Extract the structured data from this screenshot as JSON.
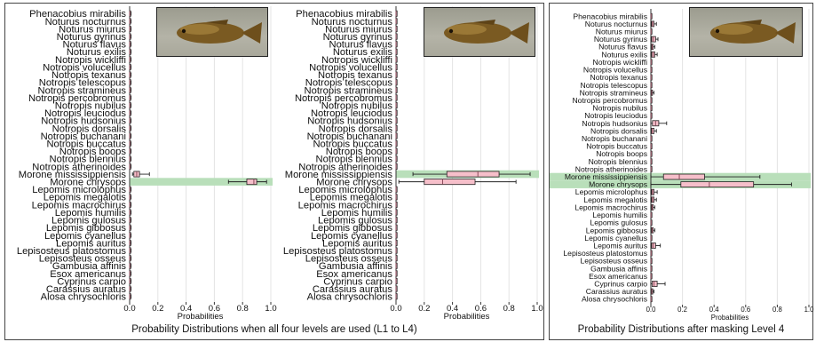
{
  "species": [
    "Phenacobius mirabilis",
    "Noturus nocturnus",
    "Noturus miurus",
    "Noturus gyrinus",
    "Noturus flavus",
    "Noturus exilis",
    "Notropis wickliffi",
    "Notropis volucellus",
    "Notropis texanus",
    "Notropis telescopus",
    "Notropis stramineus",
    "Notropis percobromus",
    "Notropis nubilus",
    "Notropis leuciodus",
    "Notropis hudsonius",
    "Notropis dorsalis",
    "Notropis buchanani",
    "Notropis buccatus",
    "Notropis boops",
    "Notropis blennius",
    "Notropis atherinoides",
    "Morone mississippiensis",
    "Morone chrysops",
    "Lepomis microlophus",
    "Lepomis megalotis",
    "Lepomis macrochirus",
    "Lepomis humilis",
    "Lepomis gulosus",
    "Lepomis gibbosus",
    "Lepomis cyanellus",
    "Lepomis auritus",
    "Lepisosteus platostomus",
    "Lepisosteus osseus",
    "Gambusia affinis",
    "Esox americanus",
    "Cyprinus carpio",
    "Carassius auratus",
    "Alosa chrysochloris"
  ],
  "colors": {
    "box_fill": "#f6bfca",
    "box_edge": "#8a4b5a",
    "highlight": "#b9dfba",
    "grid": "#e4e4e4"
  },
  "captions": {
    "left": "Probability Distributions when all four levels are used (L1 to L4)",
    "right": "Probability Distributions after masking Level 4"
  },
  "fish_image": {
    "icon": "fish-photo-icon",
    "description_visible": false
  },
  "chart_data": [
    {
      "type": "boxplot",
      "xlabel": "Probabilities",
      "xlim": [
        0.0,
        1.0
      ],
      "xticks": [
        "0.0",
        "0.2",
        "0.4",
        "0.6",
        "0.8",
        "1.0"
      ],
      "highlight_category": "Morone chrysops",
      "grid": true,
      "boxes": {
        "Morone mississippiensis": {
          "whislo": 0.02,
          "q1": 0.03,
          "med": 0.05,
          "q3": 0.07,
          "whishi": 0.14
        },
        "Morone chrysops": {
          "whislo": 0.7,
          "q1": 0.83,
          "med": 0.88,
          "q3": 0.9,
          "whishi": 0.97
        }
      },
      "default_box": {
        "whislo": 0.0,
        "q1": 0.0,
        "med": 0.0,
        "q3": 0.005,
        "whishi": 0.01
      }
    },
    {
      "type": "boxplot",
      "xlabel": "Probabilities",
      "xlim": [
        0.0,
        1.0
      ],
      "xticks": [
        "0.0",
        "0.2",
        "0.4",
        "0.6",
        "0.8",
        "1.0"
      ],
      "highlight_category": "Morone mississippiensis",
      "grid": true,
      "boxes": {
        "Morone mississippiensis": {
          "whislo": 0.12,
          "q1": 0.36,
          "med": 0.58,
          "q3": 0.73,
          "whishi": 0.95
        },
        "Morone chrysops": {
          "whislo": 0.02,
          "q1": 0.2,
          "med": 0.33,
          "q3": 0.56,
          "whishi": 0.85
        }
      },
      "default_box": {
        "whislo": 0.0,
        "q1": 0.0,
        "med": 0.0,
        "q3": 0.002,
        "whishi": 0.004
      }
    },
    {
      "type": "boxplot",
      "xlabel": "Probabilities",
      "xlim": [
        0.0,
        1.0
      ],
      "xticks": [
        "0.0",
        "0.2",
        "0.4",
        "0.6",
        "0.8",
        "1.0"
      ],
      "highlight_category": "Morone mississippiensis, Morone chrysops",
      "grid": true,
      "boxes": {
        "Noturus nocturnus": {
          "whislo": 0.0,
          "q1": 0.005,
          "med": 0.01,
          "q3": 0.02,
          "whishi": 0.035
        },
        "Noturus gyrinus": {
          "whislo": 0.0,
          "q1": 0.005,
          "med": 0.015,
          "q3": 0.03,
          "whishi": 0.045
        },
        "Noturus flavus": {
          "whislo": 0.0,
          "q1": 0.003,
          "med": 0.008,
          "q3": 0.015,
          "whishi": 0.025
        },
        "Noturus exilis": {
          "whislo": 0.0,
          "q1": 0.005,
          "med": 0.015,
          "q3": 0.025,
          "whishi": 0.04
        },
        "Notropis stramineus": {
          "whislo": 0.0,
          "q1": 0.002,
          "med": 0.005,
          "q3": 0.01,
          "whishi": 0.02
        },
        "Notropis hudsonius": {
          "whislo": 0.0,
          "q1": 0.01,
          "med": 0.03,
          "q3": 0.05,
          "whishi": 0.1
        },
        "Notropis dorsalis": {
          "whislo": 0.0,
          "q1": 0.003,
          "med": 0.008,
          "q3": 0.02,
          "whishi": 0.035
        },
        "Morone mississippiensis": {
          "whislo": 0.0,
          "q1": 0.08,
          "med": 0.18,
          "q3": 0.34,
          "whishi": 0.69
        },
        "Morone chrysops": {
          "whislo": 0.0,
          "q1": 0.19,
          "med": 0.37,
          "q3": 0.65,
          "whishi": 0.89
        },
        "Lepomis microlophus": {
          "whislo": 0.0,
          "q1": 0.005,
          "med": 0.01,
          "q3": 0.02,
          "whishi": 0.04
        },
        "Lepomis megalotis": {
          "whislo": 0.0,
          "q1": 0.005,
          "med": 0.01,
          "q3": 0.02,
          "whishi": 0.035
        },
        "Lepomis macrochirus": {
          "whislo": 0.0,
          "q1": 0.003,
          "med": 0.008,
          "q3": 0.015,
          "whishi": 0.025
        },
        "Lepomis gibbosus": {
          "whislo": 0.0,
          "q1": 0.003,
          "med": 0.008,
          "q3": 0.015,
          "whishi": 0.025
        },
        "Lepomis auritus": {
          "whislo": 0.0,
          "q1": 0.005,
          "med": 0.015,
          "q3": 0.03,
          "whishi": 0.06
        },
        "Cyprinus carpio": {
          "whislo": 0.0,
          "q1": 0.008,
          "med": 0.02,
          "q3": 0.04,
          "whishi": 0.09
        },
        "Carassius auratus": {
          "whislo": 0.0,
          "q1": 0.003,
          "med": 0.006,
          "q3": 0.012,
          "whishi": 0.02
        }
      },
      "default_box": {
        "whislo": 0.0,
        "q1": 0.0,
        "med": 0.001,
        "q3": 0.003,
        "whishi": 0.006
      }
    }
  ]
}
